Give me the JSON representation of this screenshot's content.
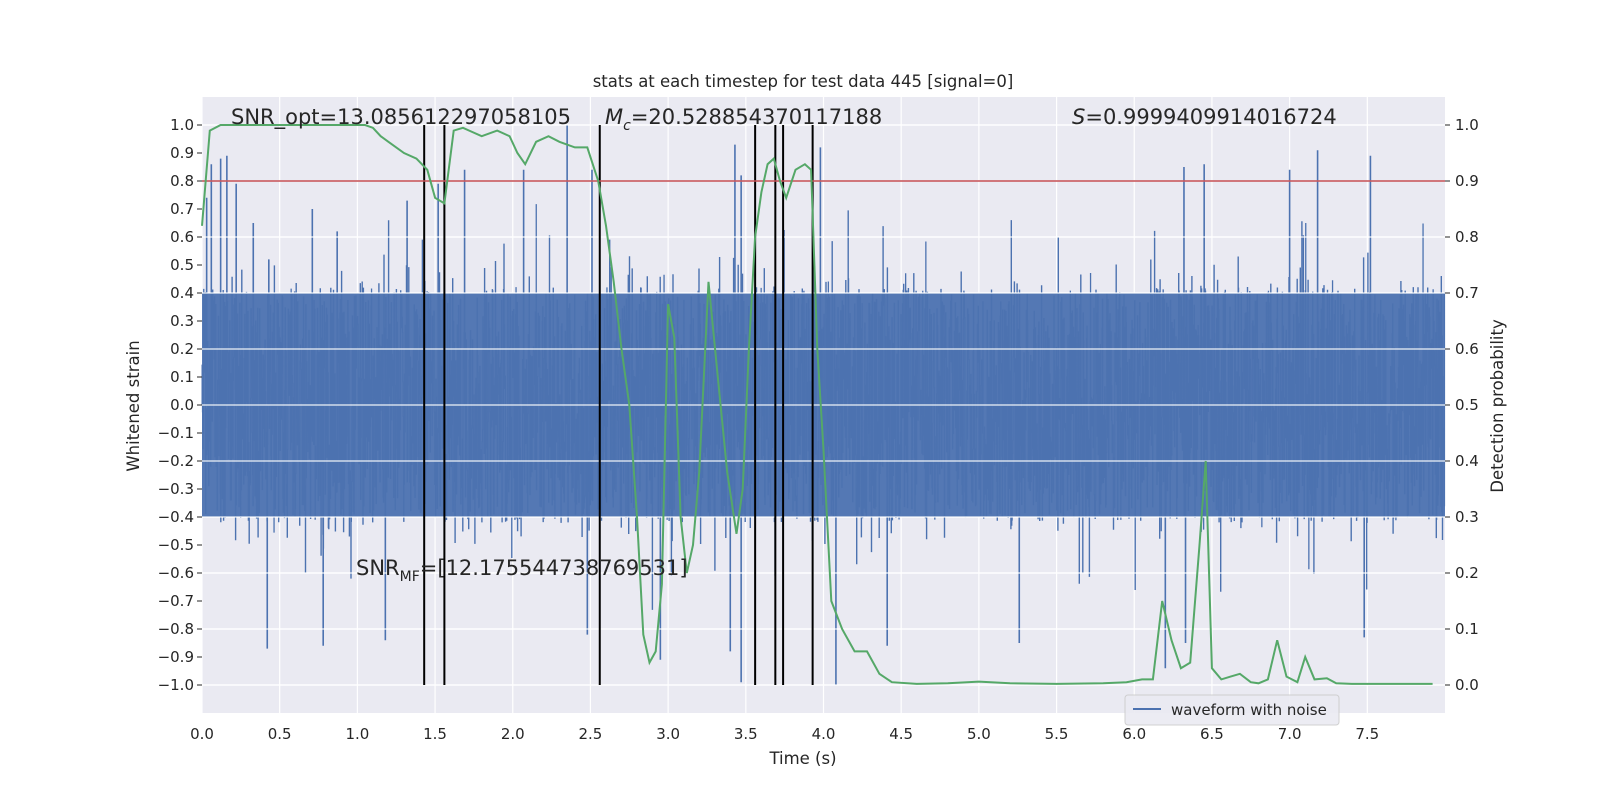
{
  "chart_data": {
    "type": "line",
    "title": "stats at each timestep for test data 445 [signal=0]",
    "xlabel": "Time (s)",
    "ylabel_left": "Whitened strain",
    "ylabel_right": "Detection probability",
    "xlim": [
      0.0,
      8.0
    ],
    "ylim_left": [
      -1.1,
      1.1
    ],
    "ylim_right": [
      -0.05,
      1.05
    ],
    "x_ticks": [
      "0.0",
      "0.5",
      "1.0",
      "1.5",
      "2.0",
      "2.5",
      "3.0",
      "3.5",
      "4.0",
      "4.5",
      "5.0",
      "5.5",
      "6.0",
      "6.5",
      "7.0",
      "7.5"
    ],
    "y_ticks_left": [
      "1.0",
      "0.9",
      "0.8",
      "0.7",
      "0.6",
      "0.5",
      "0.4",
      "0.3",
      "0.2",
      "0.1",
      "0.0",
      "−0.1",
      "−0.2",
      "−0.3",
      "−0.4",
      "−0.5",
      "−0.6",
      "−0.7",
      "−0.8",
      "−0.9",
      "−1.0"
    ],
    "y_ticks_right": [
      "1.0",
      "0.9",
      "0.8",
      "0.7",
      "0.6",
      "0.5",
      "0.4",
      "0.3",
      "0.2",
      "0.1",
      "0.0"
    ],
    "annotations": {
      "snr_opt": "SNR_opt=13.085612297058105",
      "mc_prefix": "M",
      "mc_sub": "c",
      "mc_value": "=20.528854370117188",
      "s_prefix": "S",
      "s_value": "=0.9999409914016724",
      "snr_mf_prefix": "SNR",
      "snr_mf_sub": "MF",
      "snr_mf_value": "=[12.175544738769531]"
    },
    "threshold": {
      "value_right": 0.9,
      "color": "#c44e52"
    },
    "vertical_lines_x": [
      1.43,
      1.56,
      2.56,
      3.56,
      3.69,
      3.74,
      3.93
    ],
    "series": [
      {
        "name": "waveform with noise",
        "axis": "left",
        "color": "#4c72b0",
        "sample_rate": 2048,
        "description_stats": {
          "typical_abs": 0.4,
          "max": 1.0,
          "min": -1.0
        },
        "peaks": [
          {
            "x": 0.03,
            "y": 0.74
          },
          {
            "x": 0.06,
            "y": 0.86
          },
          {
            "x": 0.12,
            "y": 0.88
          },
          {
            "x": 0.16,
            "y": 0.89
          },
          {
            "x": 0.22,
            "y": 0.79
          },
          {
            "x": 0.33,
            "y": 0.65
          },
          {
            "x": 0.43,
            "y": 0.52
          },
          {
            "x": 0.71,
            "y": 0.7
          },
          {
            "x": 0.87,
            "y": 0.62
          },
          {
            "x": 1.32,
            "y": 0.73
          },
          {
            "x": 1.52,
            "y": 0.79
          },
          {
            "x": 1.69,
            "y": 0.84
          },
          {
            "x": 2.07,
            "y": 0.84
          },
          {
            "x": 2.35,
            "y": 1.0
          },
          {
            "x": 2.51,
            "y": 0.84
          },
          {
            "x": 3.43,
            "y": 0.93
          },
          {
            "x": 3.47,
            "y": 0.82
          },
          {
            "x": 3.98,
            "y": 0.92
          },
          {
            "x": 6.32,
            "y": 0.85
          },
          {
            "x": 6.45,
            "y": 0.86
          },
          {
            "x": 7.0,
            "y": 0.84
          },
          {
            "x": 7.18,
            "y": 0.91
          },
          {
            "x": 7.52,
            "y": 0.89
          },
          {
            "x": 0.42,
            "y": -0.87
          },
          {
            "x": 0.78,
            "y": -0.86
          },
          {
            "x": 1.18,
            "y": -0.84
          },
          {
            "x": 2.48,
            "y": -0.82
          },
          {
            "x": 2.95,
            "y": -0.91
          },
          {
            "x": 3.4,
            "y": -0.88
          },
          {
            "x": 3.47,
            "y": -0.99
          },
          {
            "x": 4.08,
            "y": -1.0
          },
          {
            "x": 4.41,
            "y": -0.86
          },
          {
            "x": 5.26,
            "y": -0.85
          },
          {
            "x": 6.2,
            "y": -0.94
          },
          {
            "x": 6.33,
            "y": -0.85
          },
          {
            "x": 7.48,
            "y": -0.83
          }
        ]
      },
      {
        "name": "Detection probability",
        "axis": "right",
        "color": "#55a868",
        "x": [
          0.0,
          0.05,
          0.12,
          0.25,
          0.45,
          0.6,
          0.8,
          0.95,
          1.05,
          1.1,
          1.15,
          1.2,
          1.3,
          1.38,
          1.45,
          1.5,
          1.56,
          1.62,
          1.68,
          1.72,
          1.8,
          1.9,
          1.98,
          2.03,
          2.08,
          2.15,
          2.23,
          2.3,
          2.4,
          2.48,
          2.55,
          2.6,
          2.65,
          2.7,
          2.75,
          2.8,
          2.84,
          2.88,
          2.92,
          2.96,
          3.0,
          3.04,
          3.08,
          3.12,
          3.16,
          3.2,
          3.26,
          3.32,
          3.38,
          3.44,
          3.48,
          3.52,
          3.56,
          3.6,
          3.64,
          3.68,
          3.72,
          3.76,
          3.82,
          3.88,
          3.92,
          3.96,
          4.0,
          4.05,
          4.12,
          4.2,
          4.28,
          4.36,
          4.44,
          4.6,
          4.8,
          5.0,
          5.2,
          5.5,
          5.8,
          5.95,
          6.05,
          6.12,
          6.18,
          6.24,
          6.3,
          6.36,
          6.42,
          6.46,
          6.5,
          6.56,
          6.62,
          6.68,
          6.75,
          6.8,
          6.86,
          6.92,
          6.98,
          7.05,
          7.1,
          7.16,
          7.24,
          7.3,
          7.4,
          7.6,
          7.8,
          7.92
        ],
        "y": [
          0.82,
          0.99,
          1.0,
          1.0,
          1.0,
          1.0,
          1.0,
          1.0,
          1.0,
          0.995,
          0.98,
          0.97,
          0.95,
          0.94,
          0.92,
          0.87,
          0.86,
          0.99,
          0.995,
          0.99,
          0.98,
          0.99,
          0.98,
          0.95,
          0.93,
          0.97,
          0.98,
          0.97,
          0.96,
          0.96,
          0.9,
          0.82,
          0.72,
          0.6,
          0.5,
          0.3,
          0.09,
          0.04,
          0.06,
          0.18,
          0.68,
          0.62,
          0.3,
          0.2,
          0.25,
          0.38,
          0.72,
          0.55,
          0.38,
          0.27,
          0.35,
          0.6,
          0.8,
          0.88,
          0.93,
          0.94,
          0.9,
          0.87,
          0.92,
          0.93,
          0.92,
          0.6,
          0.42,
          0.15,
          0.1,
          0.06,
          0.06,
          0.02,
          0.005,
          0.002,
          0.003,
          0.006,
          0.003,
          0.002,
          0.003,
          0.005,
          0.01,
          0.01,
          0.15,
          0.08,
          0.03,
          0.04,
          0.25,
          0.4,
          0.03,
          0.01,
          0.015,
          0.02,
          0.005,
          0.003,
          0.01,
          0.08,
          0.015,
          0.005,
          0.05,
          0.01,
          0.012,
          0.003,
          0.002,
          0.002,
          0.002,
          0.002
        ]
      }
    ],
    "legend": {
      "position": "bottom-right",
      "entries": [
        "waveform with noise"
      ]
    }
  }
}
